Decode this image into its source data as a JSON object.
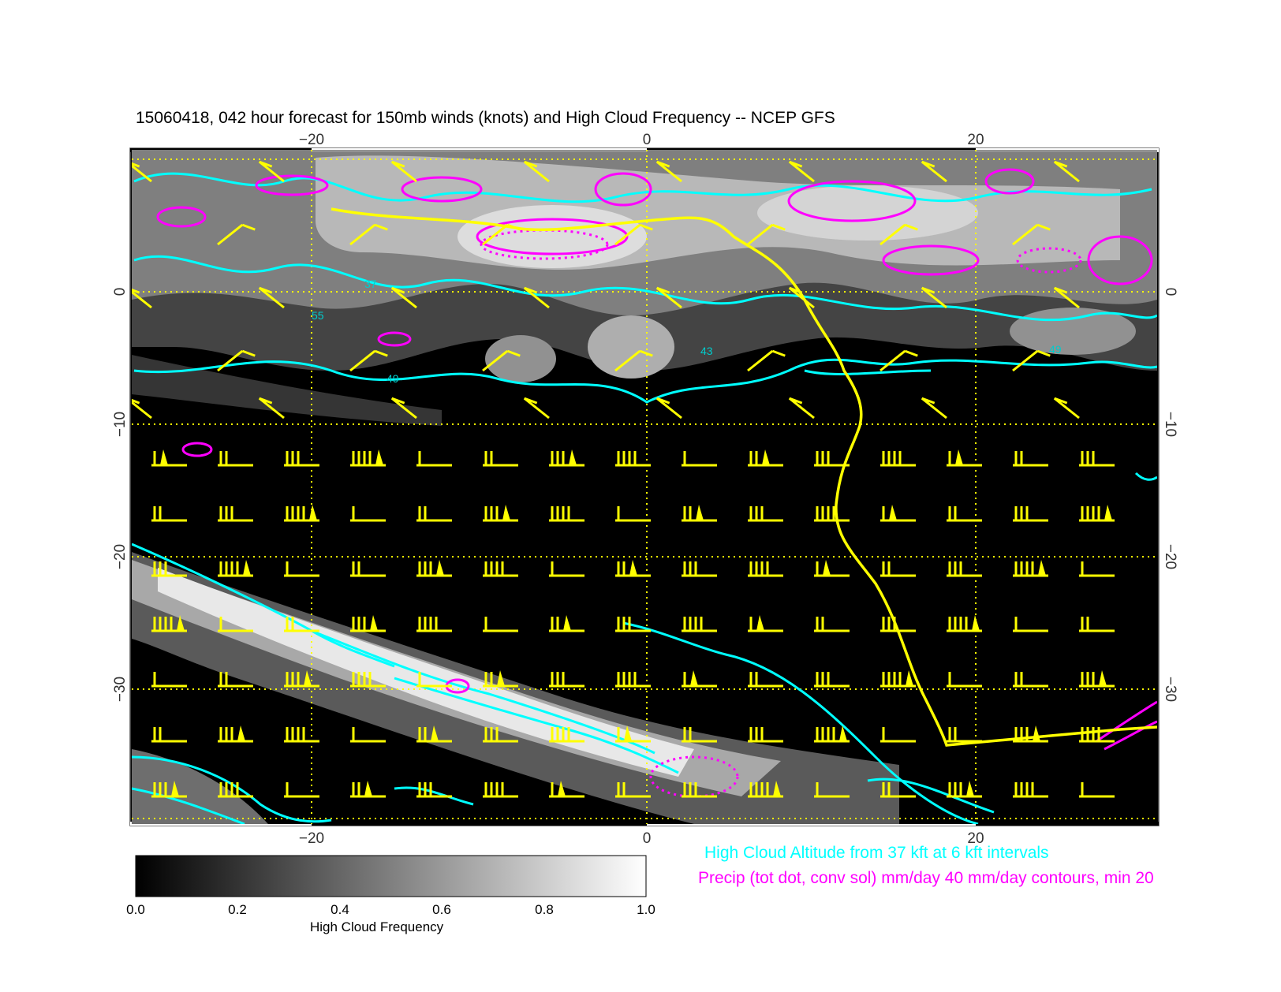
{
  "title": "15060418, 042 hour forecast for 150mb winds (knots) and High Cloud Frequency -- NCEP GFS",
  "map": {
    "x_ticks": [
      "−20",
      "0",
      "20"
    ],
    "y_ticks": [
      "0",
      "−10",
      "−20",
      "−30"
    ],
    "contour_labels": [
      "43",
      "49",
      "55",
      "37"
    ]
  },
  "colorbar": {
    "ticks": [
      "0.0",
      "0.2",
      "0.4",
      "0.6",
      "0.8",
      "1.0"
    ],
    "label": "High Cloud Frequency"
  },
  "legend": {
    "cloud_altitude": "High Cloud Altitude from 37 kft at 6 kft intervals",
    "precip": "Precip (tot dot, conv sol) mm/day 40 mm/day contours, min 20"
  },
  "colors": {
    "wind_barbs": "#ffff00",
    "cloud_altitude_contours": "#00ffff",
    "precip_contours": "#ff00ff",
    "grid": "#ffff00",
    "background": "#000000"
  }
}
